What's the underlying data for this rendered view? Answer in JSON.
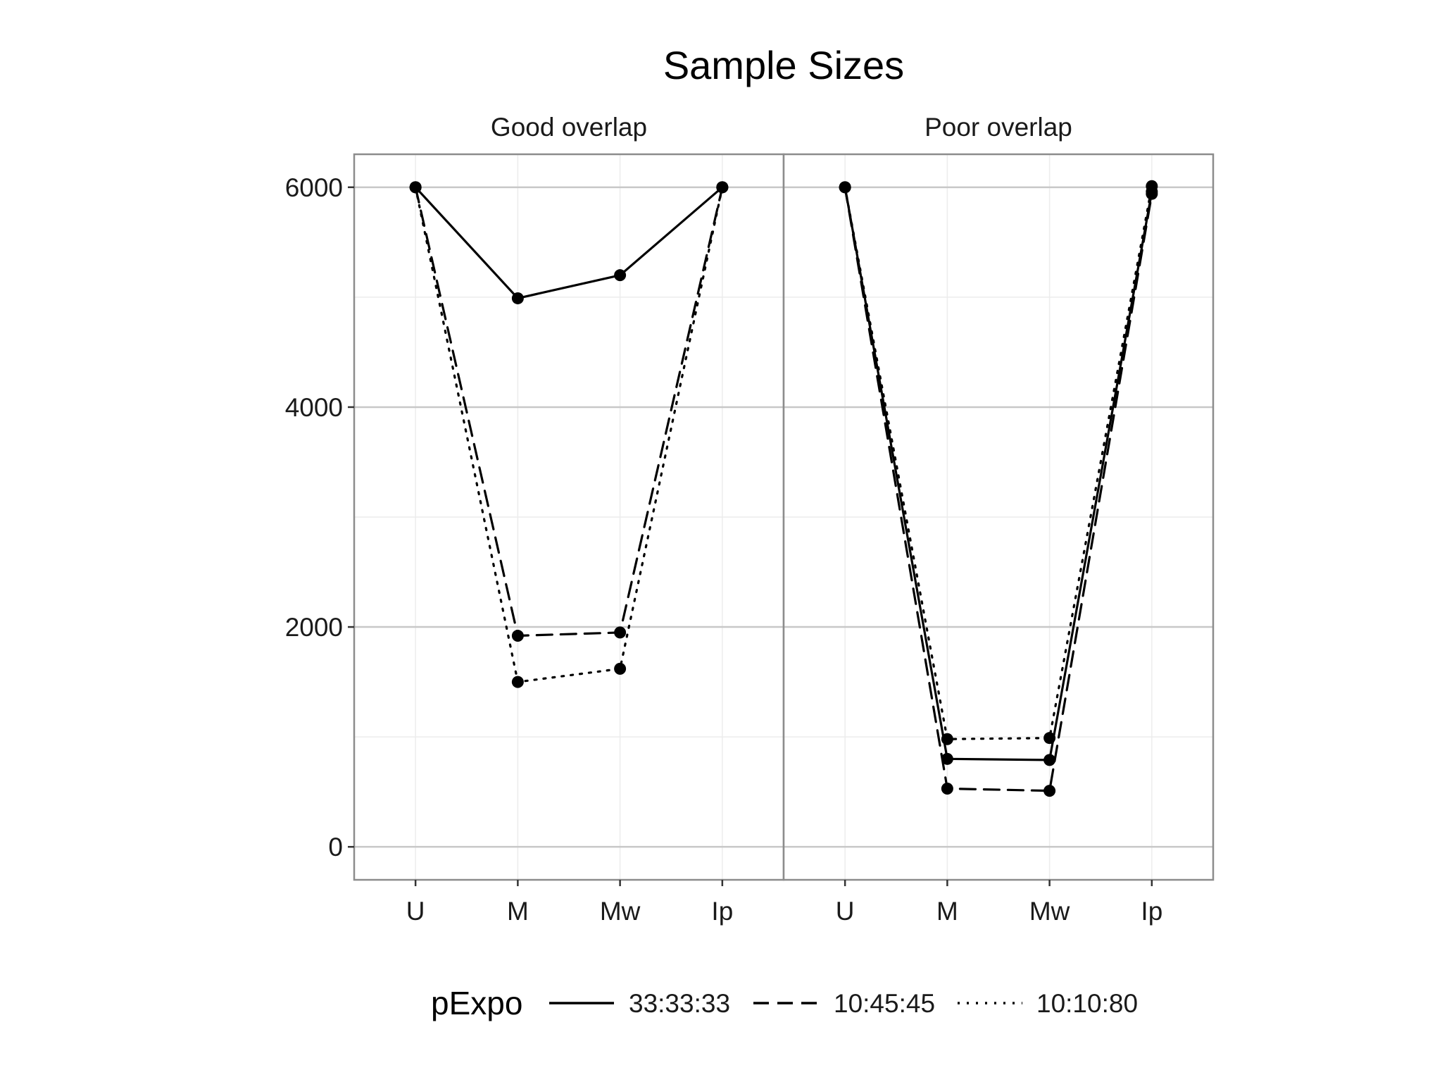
{
  "chart_data": {
    "type": "line",
    "title": "Sample Sizes",
    "xlabel": "",
    "ylabel": "",
    "ylim": [
      -300,
      6300
    ],
    "yticks": [
      0,
      2000,
      4000,
      6000
    ],
    "categories": [
      "U",
      "M",
      "Mw",
      "Ip"
    ],
    "grid": true,
    "legend": {
      "title": "pExpo",
      "placement": "bottom",
      "entries": [
        "33:33:33",
        "10:45:45",
        "10:10:80"
      ]
    },
    "series_styles": {
      "33:33:33": "solid",
      "10:45:45": "dashed",
      "10:10:80": "dotted"
    },
    "panels": [
      {
        "name": "Good overlap",
        "series": [
          {
            "name": "33:33:33",
            "values": [
              6000,
              4990,
              5200,
              6000
            ]
          },
          {
            "name": "10:45:45",
            "values": [
              6000,
              1920,
              1950,
              6000
            ]
          },
          {
            "name": "10:10:80",
            "values": [
              6000,
              1500,
              1620,
              6000
            ]
          }
        ]
      },
      {
        "name": "Poor overlap",
        "series": [
          {
            "name": "33:33:33",
            "values": [
              6000,
              800,
              790,
              5960
            ]
          },
          {
            "name": "10:45:45",
            "values": [
              6000,
              530,
              510,
              5940
            ]
          },
          {
            "name": "10:10:80",
            "values": [
              6000,
              980,
              990,
              6010
            ]
          }
        ]
      }
    ],
    "colors": {
      "panel_border": "#8c8c8c",
      "grid_major": "#c8c8c8",
      "grid_minor": "#ececec",
      "line": "#000000"
    }
  }
}
